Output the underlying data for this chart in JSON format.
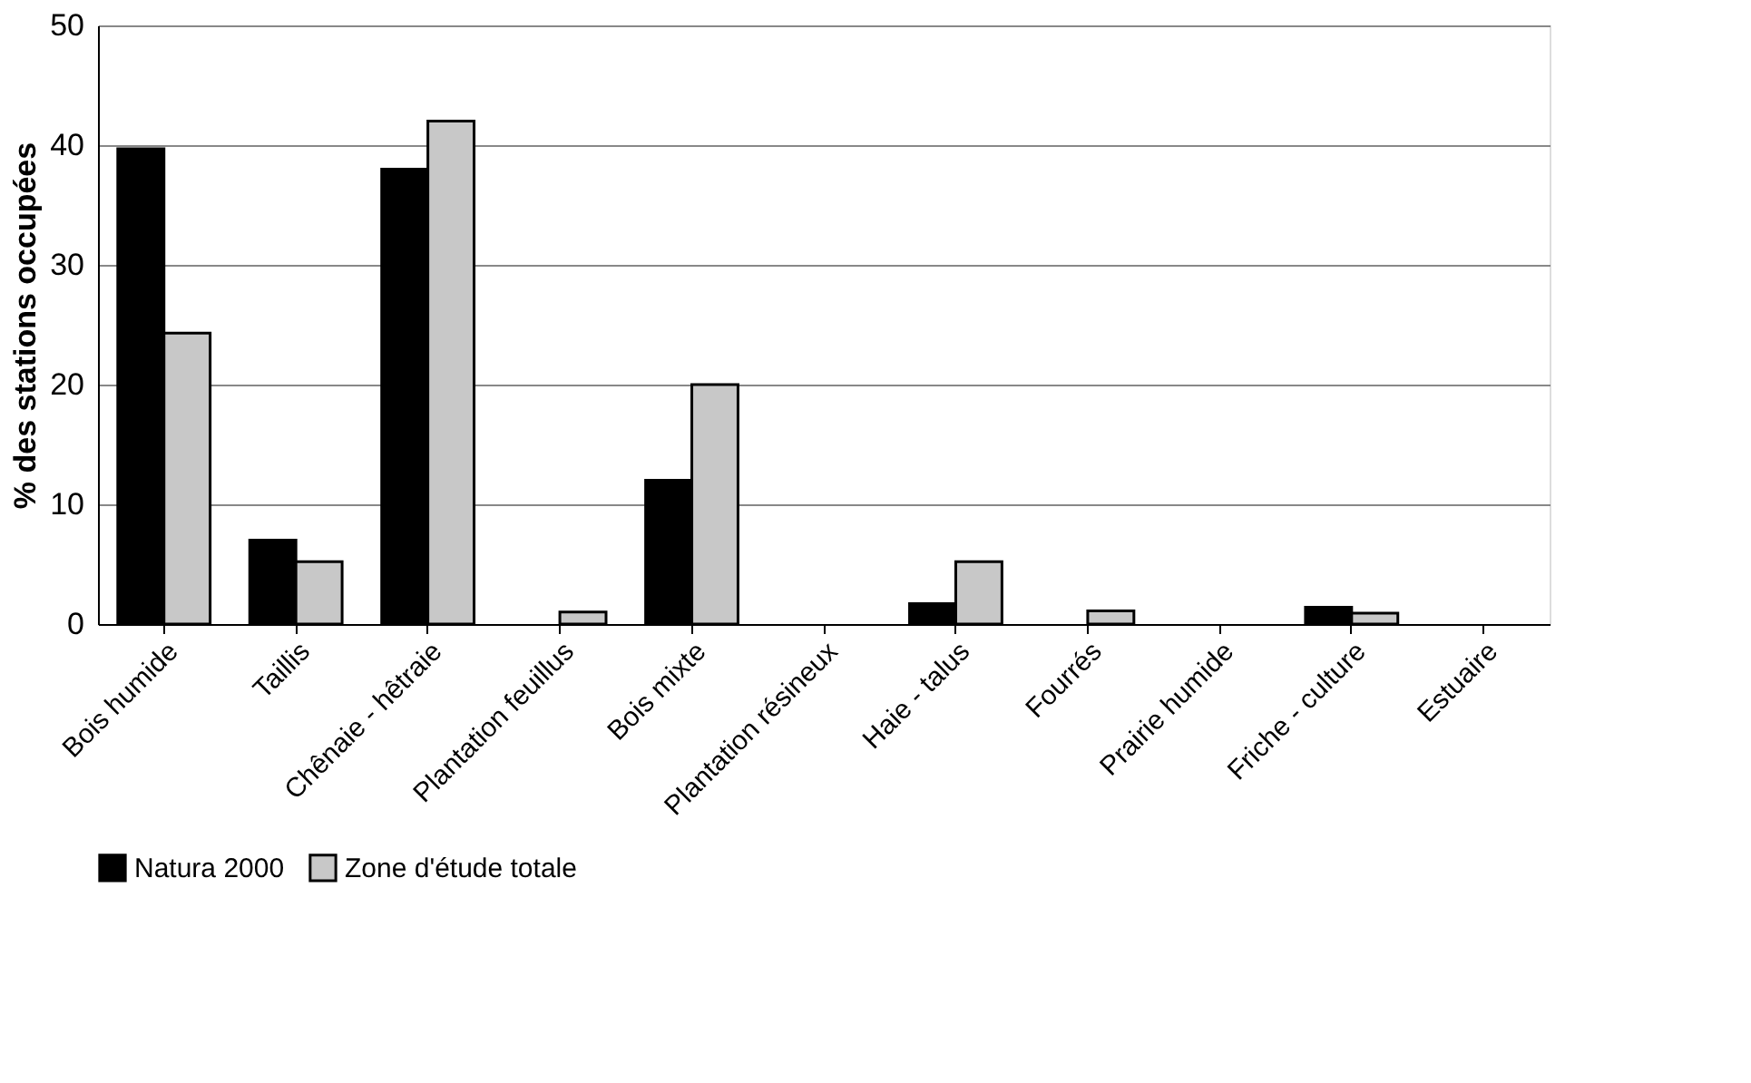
{
  "chart_data": {
    "type": "bar",
    "ylabel": "% des stations occupées",
    "categories": [
      "Bois humide",
      "Taillis",
      "Chênaie - hêtraie",
      "Plantation feuillus",
      "Bois mixte",
      "Plantation résineux",
      "Haie - talus",
      "Fourrés",
      "Prairie humide",
      "Friche - culture",
      "Estuaire"
    ],
    "series": [
      {
        "name": "Natura 2000",
        "color": "#000000",
        "values": [
          39.7,
          7,
          38,
          0,
          12,
          0,
          1.7,
          0,
          0,
          1.4,
          0
        ]
      },
      {
        "name": "Zone d'étude totale",
        "color": "#c8c8c8",
        "values": [
          24.3,
          5.2,
          42,
          1,
          20,
          0,
          5.2,
          1.1,
          0,
          0.9,
          0
        ]
      }
    ],
    "ylim": [
      0,
      50
    ],
    "yticks": [
      0,
      10,
      20,
      30,
      40,
      50
    ],
    "grid": "y",
    "legend": "bottom"
  }
}
